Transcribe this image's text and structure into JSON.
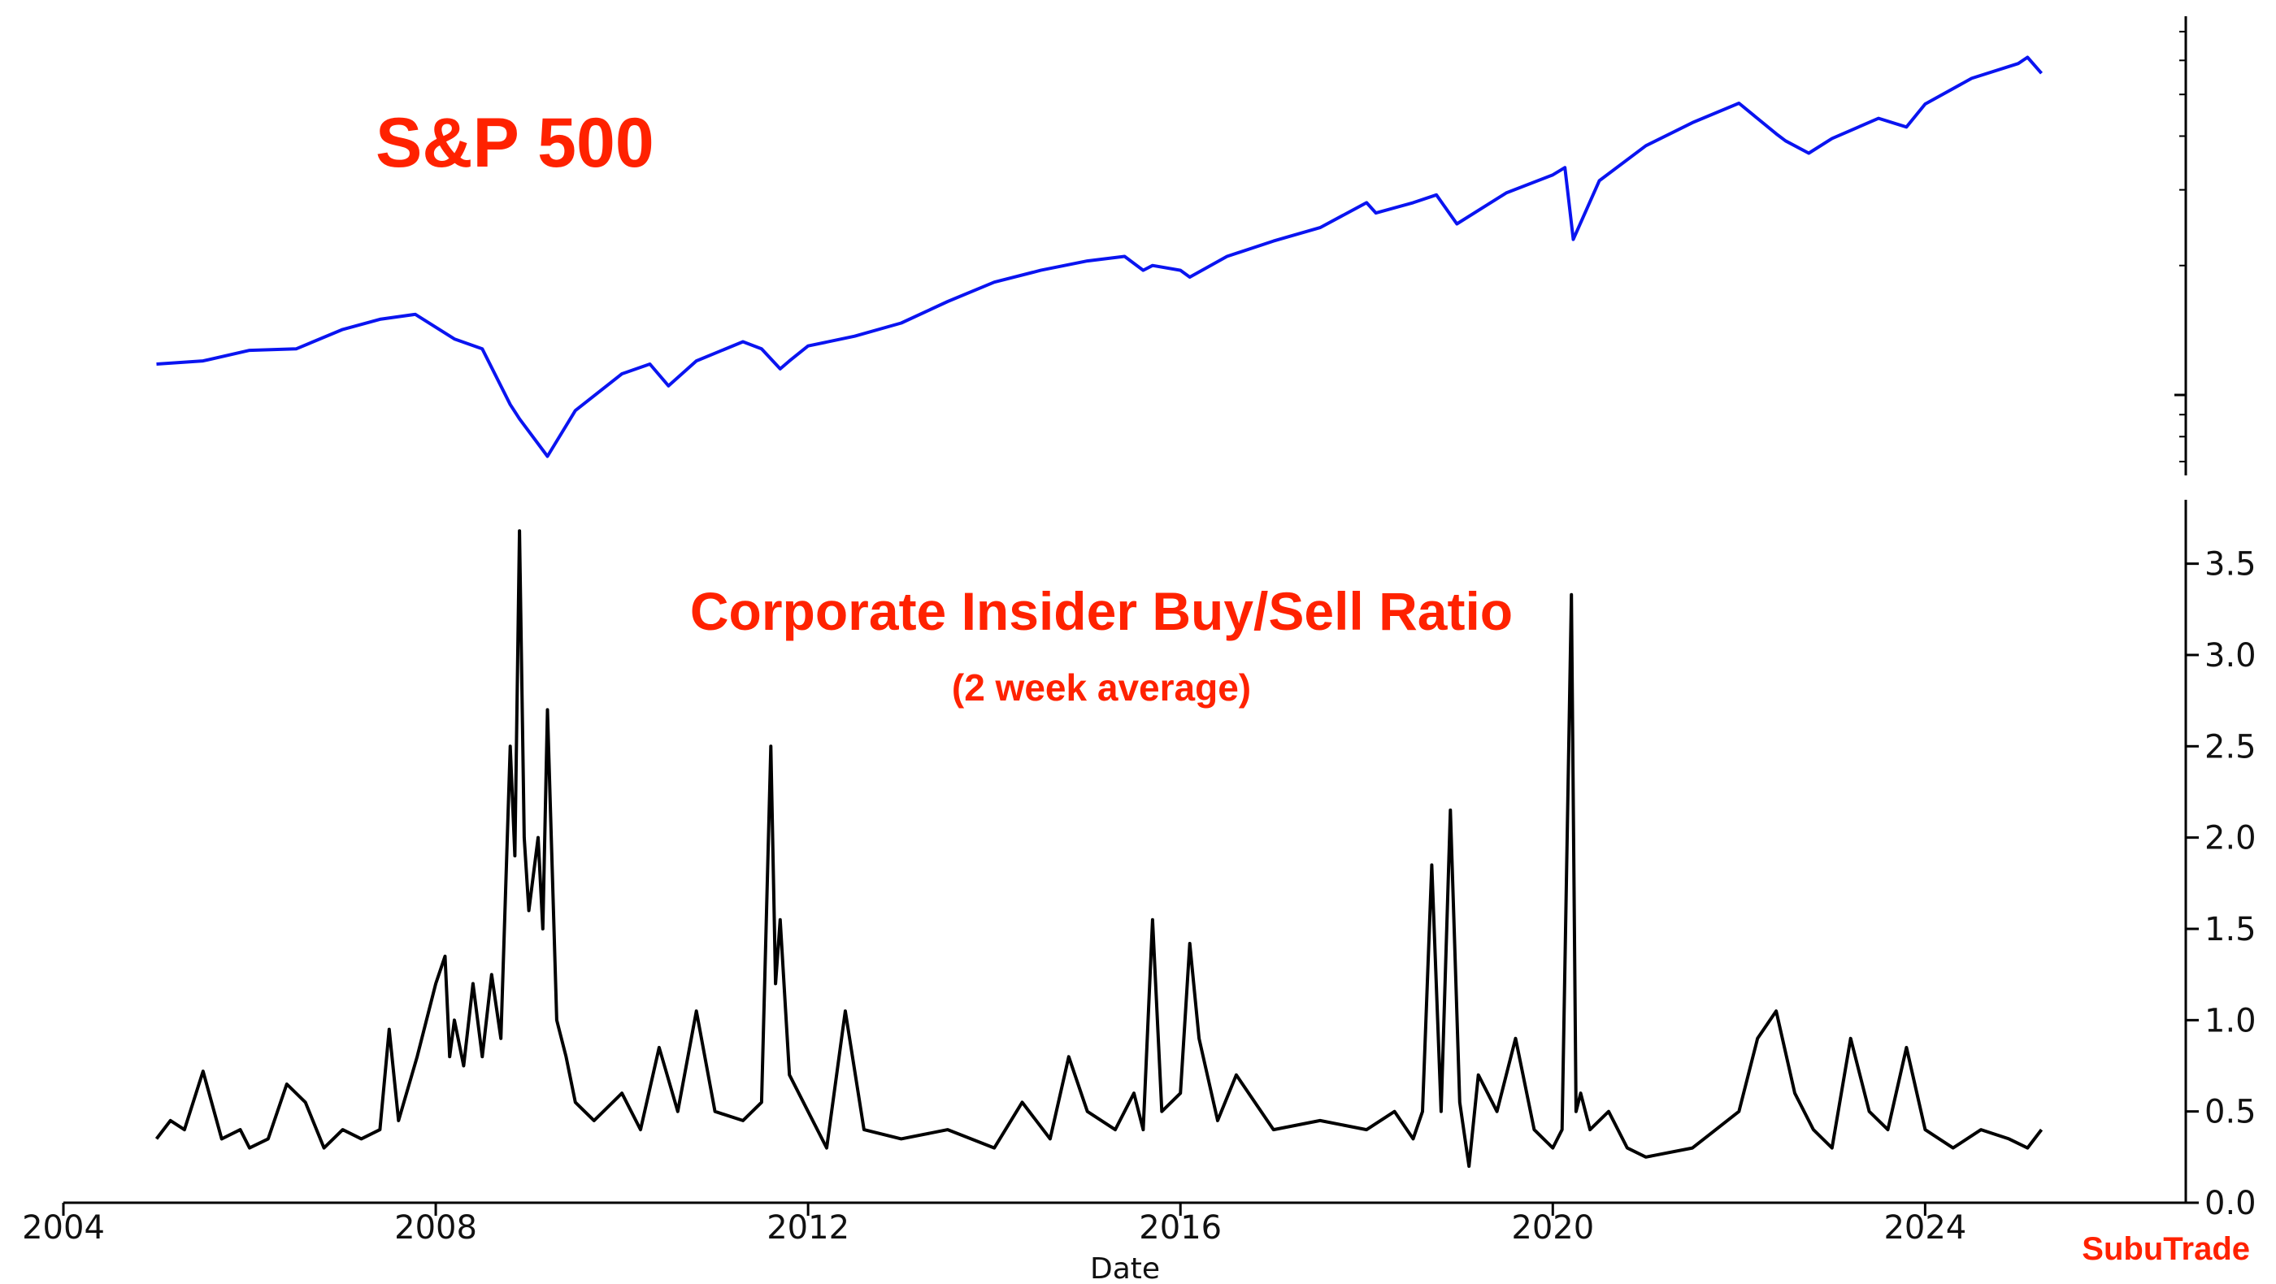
{
  "colors": {
    "sp500_line": "#0a14f0",
    "ratio_line": "#000000",
    "title_red": "#ff2200"
  },
  "chart_data": [
    {
      "type": "line",
      "title": "S&P 500",
      "xlim": [
        2004,
        2026.8
      ],
      "y_scale": "log",
      "ylim": [
        650,
        7600
      ],
      "y_tick_labels_shown": false,
      "series": [
        {
          "x": [
            2005.0,
            2005.5,
            2006.0,
            2006.5,
            2007.0,
            2007.4,
            2007.78,
            2008.2,
            2008.5,
            2008.8,
            2008.9,
            2009.2,
            2009.5,
            2010.0,
            2010.3,
            2010.5,
            2010.8,
            2011.3,
            2011.5,
            2011.7,
            2011.8,
            2012.0,
            2012.5,
            2013.0,
            2013.5,
            2014.0,
            2014.5,
            2015.0,
            2015.4,
            2015.6,
            2015.7,
            2016.0,
            2016.1,
            2016.5,
            2017.0,
            2017.5,
            2018.0,
            2018.1,
            2018.5,
            2018.75,
            2018.97,
            2019.5,
            2020.0,
            2020.13,
            2020.22,
            2020.5,
            2021.0,
            2021.5,
            2022.0,
            2022.4,
            2022.5,
            2022.75,
            2023.0,
            2023.5,
            2023.8,
            2024.0,
            2024.5,
            2025.0,
            2025.1,
            2025.25
          ],
          "y": [
            1180,
            1200,
            1270,
            1280,
            1420,
            1500,
            1540,
            1350,
            1280,
            950,
            880,
            720,
            920,
            1120,
            1180,
            1050,
            1200,
            1330,
            1280,
            1150,
            1200,
            1300,
            1370,
            1470,
            1650,
            1830,
            1950,
            2050,
            2100,
            1950,
            2000,
            1950,
            1880,
            2100,
            2280,
            2450,
            2800,
            2650,
            2800,
            2920,
            2500,
            2950,
            3250,
            3380,
            2300,
            3150,
            3800,
            4300,
            4770,
            4050,
            3900,
            3650,
            3950,
            4400,
            4200,
            4750,
            5450,
            5900,
            6100,
            5600
          ]
        }
      ]
    },
    {
      "type": "line",
      "title": "Corporate Insider Buy/Sell Ratio",
      "subtitle": "(2 week average)",
      "xlabel": "Date",
      "xlim": [
        2004,
        2026.8
      ],
      "ylim": [
        0,
        3.85
      ],
      "x_ticks": [
        2004,
        2008,
        2012,
        2016,
        2020,
        2024
      ],
      "y_ticks": [
        0.0,
        0.5,
        1.0,
        1.5,
        2.0,
        2.5,
        3.0,
        3.5
      ],
      "series": [
        {
          "x": [
            2005.0,
            2005.15,
            2005.3,
            2005.5,
            2005.7,
            2005.9,
            2006.0,
            2006.2,
            2006.4,
            2006.6,
            2006.8,
            2007.0,
            2007.2,
            2007.4,
            2007.5,
            2007.6,
            2007.8,
            2008.0,
            2008.1,
            2008.15,
            2008.2,
            2008.3,
            2008.4,
            2008.5,
            2008.6,
            2008.7,
            2008.8,
            2008.85,
            2008.9,
            2008.95,
            2009.0,
            2009.1,
            2009.15,
            2009.2,
            2009.3,
            2009.4,
            2009.5,
            2009.7,
            2010.0,
            2010.2,
            2010.4,
            2010.6,
            2010.8,
            2011.0,
            2011.3,
            2011.5,
            2011.6,
            2011.65,
            2011.7,
            2011.8,
            2012.0,
            2012.2,
            2012.4,
            2012.6,
            2013.0,
            2013.5,
            2014.0,
            2014.3,
            2014.6,
            2014.8,
            2015.0,
            2015.3,
            2015.5,
            2015.6,
            2015.7,
            2015.8,
            2016.0,
            2016.1,
            2016.2,
            2016.4,
            2016.6,
            2017.0,
            2017.5,
            2018.0,
            2018.3,
            2018.5,
            2018.6,
            2018.7,
            2018.8,
            2018.9,
            2019.0,
            2019.1,
            2019.2,
            2019.4,
            2019.6,
            2019.8,
            2020.0,
            2020.1,
            2020.2,
            2020.25,
            2020.3,
            2020.4,
            2020.6,
            2020.8,
            2021.0,
            2021.5,
            2022.0,
            2022.2,
            2022.4,
            2022.6,
            2022.8,
            2023.0,
            2023.2,
            2023.4,
            2023.6,
            2023.8,
            2024.0,
            2024.3,
            2024.6,
            2024.9,
            2025.1,
            2025.25
          ],
          "y": [
            0.35,
            0.45,
            0.4,
            0.72,
            0.35,
            0.4,
            0.3,
            0.35,
            0.65,
            0.55,
            0.3,
            0.4,
            0.35,
            0.4,
            0.95,
            0.45,
            0.8,
            1.2,
            1.35,
            0.8,
            1.0,
            0.75,
            1.2,
            0.8,
            1.25,
            0.9,
            2.5,
            1.9,
            3.68,
            2.0,
            1.6,
            2.0,
            1.5,
            2.7,
            1.0,
            0.8,
            0.55,
            0.45,
            0.6,
            0.4,
            0.85,
            0.5,
            1.05,
            0.5,
            0.45,
            0.55,
            2.5,
            1.2,
            1.55,
            0.7,
            0.5,
            0.3,
            1.05,
            0.4,
            0.35,
            0.4,
            0.3,
            0.55,
            0.35,
            0.8,
            0.5,
            0.4,
            0.6,
            0.4,
            1.55,
            0.5,
            0.6,
            1.42,
            0.9,
            0.45,
            0.7,
            0.4,
            0.45,
            0.4,
            0.5,
            0.35,
            0.5,
            1.85,
            0.5,
            2.15,
            0.55,
            0.2,
            0.7,
            0.5,
            0.9,
            0.4,
            0.3,
            0.4,
            3.33,
            0.5,
            0.6,
            0.4,
            0.5,
            0.3,
            0.25,
            0.3,
            0.5,
            0.9,
            1.05,
            0.6,
            0.4,
            0.3,
            0.9,
            0.5,
            0.4,
            0.85,
            0.4,
            0.3,
            0.4,
            0.35,
            0.3,
            0.4
          ]
        }
      ]
    }
  ],
  "labels": {
    "sp500_title": "S&P 500",
    "insider_title": "Corporate Insider Buy/Sell Ratio",
    "insider_subtitle": "(2 week average)",
    "x_axis_label": "Date",
    "brand": "SubuTrade"
  }
}
